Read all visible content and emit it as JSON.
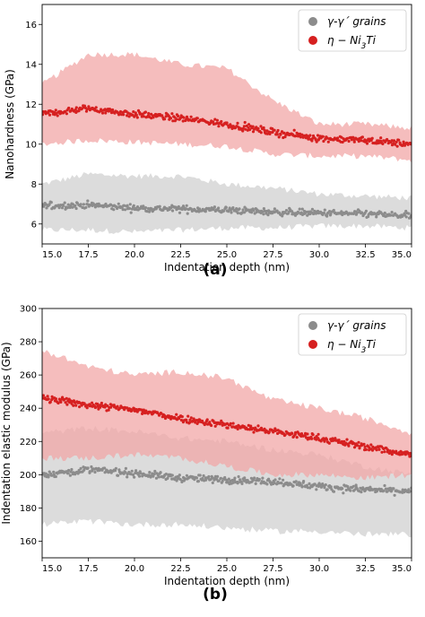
{
  "chart_data": [
    {
      "type": "scatter",
      "panel_label": "(a)",
      "xlabel": "Indentation depth (nm)",
      "ylabel": "Nanohardness (GPa)",
      "xlim": [
        15.0,
        35.0
      ],
      "ylim": [
        5.0,
        17.0
      ],
      "xticks": [
        "15.0",
        "17.5",
        "20.0",
        "22.5",
        "25.0",
        "27.5",
        "30.0",
        "32.5",
        "35.0"
      ],
      "yticks": [
        "6",
        "8",
        "10",
        "12",
        "14",
        "16"
      ],
      "legend_position": "top-right",
      "legend_frame": true,
      "grid": false,
      "series": [
        {
          "name": "γ-γ´ grains",
          "color": "#8c8c8c",
          "band_color": "#dcdcdc",
          "x": [
            15,
            17.5,
            20,
            22.5,
            25,
            27.5,
            30,
            32.5,
            35
          ],
          "mean": [
            6.9,
            6.95,
            6.8,
            6.75,
            6.7,
            6.6,
            6.55,
            6.5,
            6.4
          ],
          "band_upper": [
            8.0,
            8.5,
            8.4,
            8.4,
            8.0,
            7.8,
            7.5,
            7.4,
            7.3
          ],
          "band_lower": [
            5.7,
            5.7,
            5.6,
            5.7,
            5.8,
            5.8,
            5.9,
            5.9,
            5.8
          ]
        },
        {
          "name": "η − Ni3Ti",
          "color": "#d62020",
          "band_color": "#f2a7a7",
          "x": [
            15,
            17.5,
            20,
            22.5,
            25,
            27.5,
            30,
            32.5,
            35
          ],
          "mean": [
            11.5,
            11.8,
            11.5,
            11.3,
            11.0,
            10.6,
            10.3,
            10.2,
            10.0
          ],
          "band_upper": [
            13.0,
            14.5,
            14.5,
            14.0,
            13.8,
            12.2,
            11.0,
            11.0,
            10.8
          ],
          "band_lower": [
            10.0,
            10.2,
            10.1,
            10.0,
            9.9,
            9.5,
            9.4,
            9.4,
            9.2
          ]
        }
      ]
    },
    {
      "type": "scatter",
      "panel_label": "(b)",
      "xlabel": "Indentation depth (nm)",
      "ylabel": "Indentation elastic modulus (GPa)",
      "xlim": [
        15.0,
        35.0
      ],
      "ylim": [
        150,
        300
      ],
      "xticks": [
        "15.0",
        "17.5",
        "20.0",
        "22.5",
        "25.0",
        "27.5",
        "30.0",
        "32.5",
        "35.0"
      ],
      "yticks": [
        "160",
        "180",
        "200",
        "220",
        "240",
        "260",
        "280",
        "300"
      ],
      "legend_position": "top-right",
      "legend_frame": true,
      "grid": false,
      "series": [
        {
          "name": "γ-γ´ grains",
          "color": "#8c8c8c",
          "band_color": "#dcdcdc",
          "x": [
            15,
            17.5,
            20,
            22.5,
            25,
            27.5,
            30,
            32.5,
            35
          ],
          "mean": [
            200,
            203,
            201,
            198,
            197,
            196,
            193,
            191,
            190
          ],
          "band_upper": [
            225,
            228,
            226,
            222,
            220,
            215,
            212,
            205,
            200
          ],
          "band_lower": [
            170,
            172,
            170,
            170,
            168,
            166,
            166,
            164,
            164
          ]
        },
        {
          "name": "η − Ni3Ti",
          "color": "#d62020",
          "band_color": "#f2a7a7",
          "x": [
            15,
            17.5,
            20,
            22.5,
            25,
            27.5,
            30,
            32.5,
            35
          ],
          "mean": [
            246,
            242,
            239,
            234,
            230,
            226,
            222,
            217,
            212
          ],
          "band_upper": [
            275,
            265,
            260,
            262,
            258,
            245,
            240,
            234,
            225
          ],
          "band_lower": [
            210,
            210,
            212,
            210,
            205,
            200,
            200,
            198,
            200
          ]
        }
      ]
    }
  ]
}
